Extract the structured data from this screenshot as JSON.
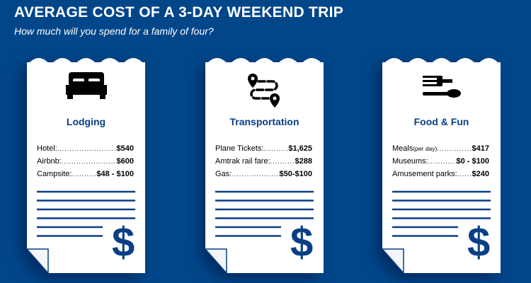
{
  "header": {
    "title": "AVERAGE COST OF A 3-DAY WEEKEND TRIP",
    "subtitle": "How much will you spend for a family of four?"
  },
  "colors": {
    "background": "#02468a",
    "accent": "#0a3f85",
    "receipt": "#ffffff"
  },
  "cards": [
    {
      "icon": "bed-icon",
      "category": "Lodging",
      "items": [
        {
          "label": "Hotel:",
          "note": "",
          "value": "$540"
        },
        {
          "label": "Airbnb:",
          "note": "",
          "value": "$600"
        },
        {
          "label": "Campsite:",
          "note": "",
          "value": "$48 - $100"
        }
      ],
      "symbol": "$"
    },
    {
      "icon": "route-map-pin-icon",
      "category": "Transportation",
      "items": [
        {
          "label": "Plane Tickets:",
          "note": "",
          "value": "$1,625"
        },
        {
          "label": "Amtrak rail fare:",
          "note": "",
          "value": "$288"
        },
        {
          "label": "Gas:",
          "note": "",
          "value": "$50-$100"
        }
      ],
      "symbol": "$"
    },
    {
      "icon": "fork-spoon-icon",
      "category": "Food & Fun",
      "items": [
        {
          "label": "Meals",
          "note": "(per day)",
          "value": "$417"
        },
        {
          "label": "Museums:",
          "note": "",
          "value": "$0 - $100"
        },
        {
          "label": "Amusement parks:",
          "note": "",
          "value": "$240"
        }
      ],
      "symbol": "$"
    }
  ]
}
